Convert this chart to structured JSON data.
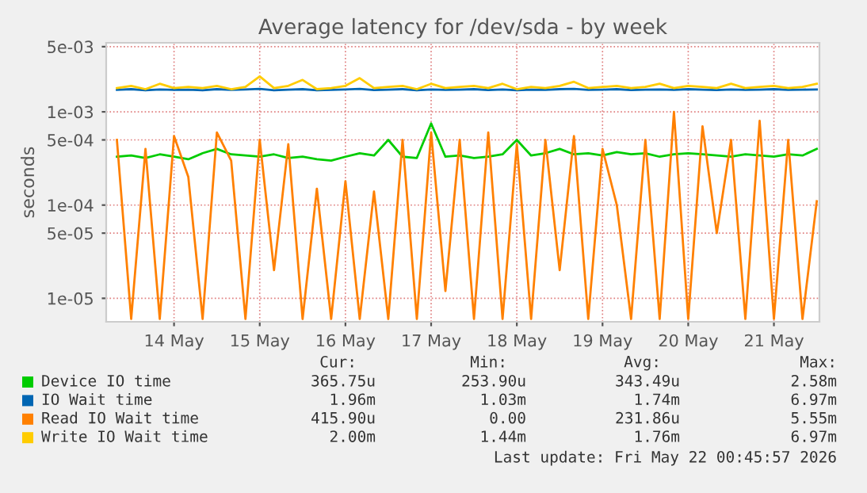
{
  "chart_data": {
    "type": "line",
    "title": "Average latency for /dev/sda - by week",
    "ylabel": "seconds",
    "x": [
      "2026-05-13T20:00",
      "2026-05-14T00:00",
      "2026-05-14T04:00",
      "2026-05-14T08:00",
      "2026-05-14T12:00",
      "2026-05-14T16:00",
      "2026-05-14T20:00",
      "2026-05-15T00:00",
      "2026-05-15T04:00",
      "2026-05-15T08:00",
      "2026-05-15T12:00",
      "2026-05-15T16:00",
      "2026-05-15T20:00",
      "2026-05-16T00:00",
      "2026-05-16T04:00",
      "2026-05-16T08:00",
      "2026-05-16T12:00",
      "2026-05-16T16:00",
      "2026-05-16T20:00",
      "2026-05-17T00:00",
      "2026-05-17T04:00",
      "2026-05-17T08:00",
      "2026-05-17T12:00",
      "2026-05-17T16:00",
      "2026-05-17T20:00",
      "2026-05-18T00:00",
      "2026-05-18T04:00",
      "2026-05-18T08:00",
      "2026-05-18T12:00",
      "2026-05-18T16:00",
      "2026-05-18T20:00",
      "2026-05-19T00:00",
      "2026-05-19T04:00",
      "2026-05-19T08:00",
      "2026-05-19T12:00",
      "2026-05-19T16:00",
      "2026-05-19T20:00",
      "2026-05-20T00:00",
      "2026-05-20T04:00",
      "2026-05-20T08:00",
      "2026-05-20T12:00",
      "2026-05-20T16:00",
      "2026-05-20T20:00",
      "2026-05-21T00:00",
      "2026-05-21T04:00",
      "2026-05-21T08:00",
      "2026-05-21T12:00",
      "2026-05-21T16:00",
      "2026-05-21T20:00",
      "2026-05-22T00:00"
    ],
    "series": [
      {
        "name": "Device IO time",
        "color": "#00cc00",
        "values": [
          0.00033,
          0.00034,
          0.00032,
          0.00035,
          0.00033,
          0.00031,
          0.00036,
          0.0004,
          0.00035,
          0.00034,
          0.00033,
          0.00035,
          0.00032,
          0.00033,
          0.00031,
          0.0003,
          0.00033,
          0.00036,
          0.00034,
          0.0005,
          0.00033,
          0.00032,
          0.00075,
          0.00033,
          0.00034,
          0.00032,
          0.00033,
          0.00035,
          0.0005,
          0.00034,
          0.00036,
          0.0004,
          0.00035,
          0.00036,
          0.00034,
          0.00037,
          0.00035,
          0.00036,
          0.00033,
          0.00035,
          0.00036,
          0.00035,
          0.00034,
          0.00033,
          0.00035,
          0.00034,
          0.00033,
          0.00035,
          0.00034,
          0.0004
        ]
      },
      {
        "name": "IO Wait time",
        "color": "#0066b3",
        "values": [
          0.00172,
          0.00175,
          0.0017,
          0.00174,
          0.00172,
          0.00173,
          0.0017,
          0.00175,
          0.00172,
          0.00174,
          0.00176,
          0.0017,
          0.00173,
          0.00175,
          0.0017,
          0.00172,
          0.00174,
          0.00176,
          0.00171,
          0.00173,
          0.00175,
          0.0017,
          0.00174,
          0.00172,
          0.00173,
          0.00175,
          0.00171,
          0.00174,
          0.0017,
          0.00173,
          0.00172,
          0.00175,
          0.00176,
          0.00172,
          0.00173,
          0.00175,
          0.00171,
          0.00173,
          0.00174,
          0.00172,
          0.00175,
          0.00173,
          0.00171,
          0.00174,
          0.00172,
          0.00173,
          0.00175,
          0.00172,
          0.00173,
          0.00174
        ]
      },
      {
        "name": "Read IO Wait time",
        "color": "#ff8000",
        "values": [
          0.0005,
          6e-06,
          0.0004,
          6e-06,
          0.00055,
          0.0002,
          6e-06,
          0.0006,
          0.0003,
          6e-06,
          0.0005,
          2e-05,
          0.00045,
          6e-06,
          0.00015,
          6e-06,
          0.00018,
          6e-06,
          0.00014,
          6e-06,
          0.0005,
          6e-06,
          0.0006,
          1.2e-05,
          0.0005,
          6e-06,
          0.0006,
          6e-06,
          0.00045,
          6e-06,
          0.0005,
          2e-05,
          0.00055,
          6e-06,
          0.0004,
          0.0001,
          6e-06,
          0.0005,
          6e-06,
          0.001,
          6e-06,
          0.0007,
          5e-05,
          0.0005,
          6e-06,
          0.0008,
          6e-06,
          0.0005,
          6e-06,
          0.00011
        ]
      },
      {
        "name": "Write IO Wait time",
        "color": "#ffcc00",
        "values": [
          0.0018,
          0.0019,
          0.00175,
          0.002,
          0.0018,
          0.00185,
          0.0018,
          0.0019,
          0.00175,
          0.00185,
          0.0024,
          0.0018,
          0.0019,
          0.0022,
          0.00175,
          0.0018,
          0.0019,
          0.0023,
          0.0018,
          0.00185,
          0.0019,
          0.00175,
          0.002,
          0.0018,
          0.00185,
          0.0019,
          0.0018,
          0.002,
          0.00175,
          0.00185,
          0.0018,
          0.0019,
          0.0021,
          0.0018,
          0.00185,
          0.0019,
          0.0018,
          0.00185,
          0.002,
          0.0018,
          0.0019,
          0.00185,
          0.0018,
          0.002,
          0.0018,
          0.00185,
          0.0019,
          0.0018,
          0.00185,
          0.002
        ]
      }
    ],
    "log": "y",
    "xlim": [
      "2026-05-13T17:00",
      "2026-05-22T00:45"
    ],
    "xticks": [
      {
        "value": "2026-05-14T12:00",
        "label": "14 May"
      },
      {
        "value": "2026-05-15T12:00",
        "label": "15 May"
      },
      {
        "value": "2026-05-16T12:00",
        "label": "16 May"
      },
      {
        "value": "2026-05-17T12:00",
        "label": "17 May"
      },
      {
        "value": "2026-05-18T12:00",
        "label": "18 May"
      },
      {
        "value": "2026-05-19T12:00",
        "label": "19 May"
      },
      {
        "value": "2026-05-20T12:00",
        "label": "20 May"
      },
      {
        "value": "2026-05-21T12:00",
        "label": "21 May"
      }
    ],
    "ylim": [
      5.6e-06,
      0.0055
    ],
    "yticks": [
      {
        "value": 1e-05,
        "label": "1e-05"
      },
      {
        "value": 5e-05,
        "label": "5e-05"
      },
      {
        "value": 0.0001,
        "label": "1e-04"
      },
      {
        "value": 0.0005,
        "label": "5e-04"
      },
      {
        "value": 0.001,
        "label": "1e-03"
      },
      {
        "value": 0.005,
        "label": "5e-03"
      }
    ],
    "grid": true,
    "legend": "bottom",
    "marker": "none",
    "line_style": "solid",
    "annotations": [
      "Cur:",
      "Min:",
      "Avg:",
      "Max:",
      "365.75u",
      "253.90u",
      "343.49u",
      "2.58m",
      "1.96m",
      "1.03m",
      "1.74m",
      "6.97m",
      "415.90u",
      "0.00",
      "231.86u",
      "5.55m",
      "2.00m",
      "1.44m",
      "1.76m",
      "6.97m",
      "Last update: Fri May 22 00:45:57 2026"
    ]
  }
}
